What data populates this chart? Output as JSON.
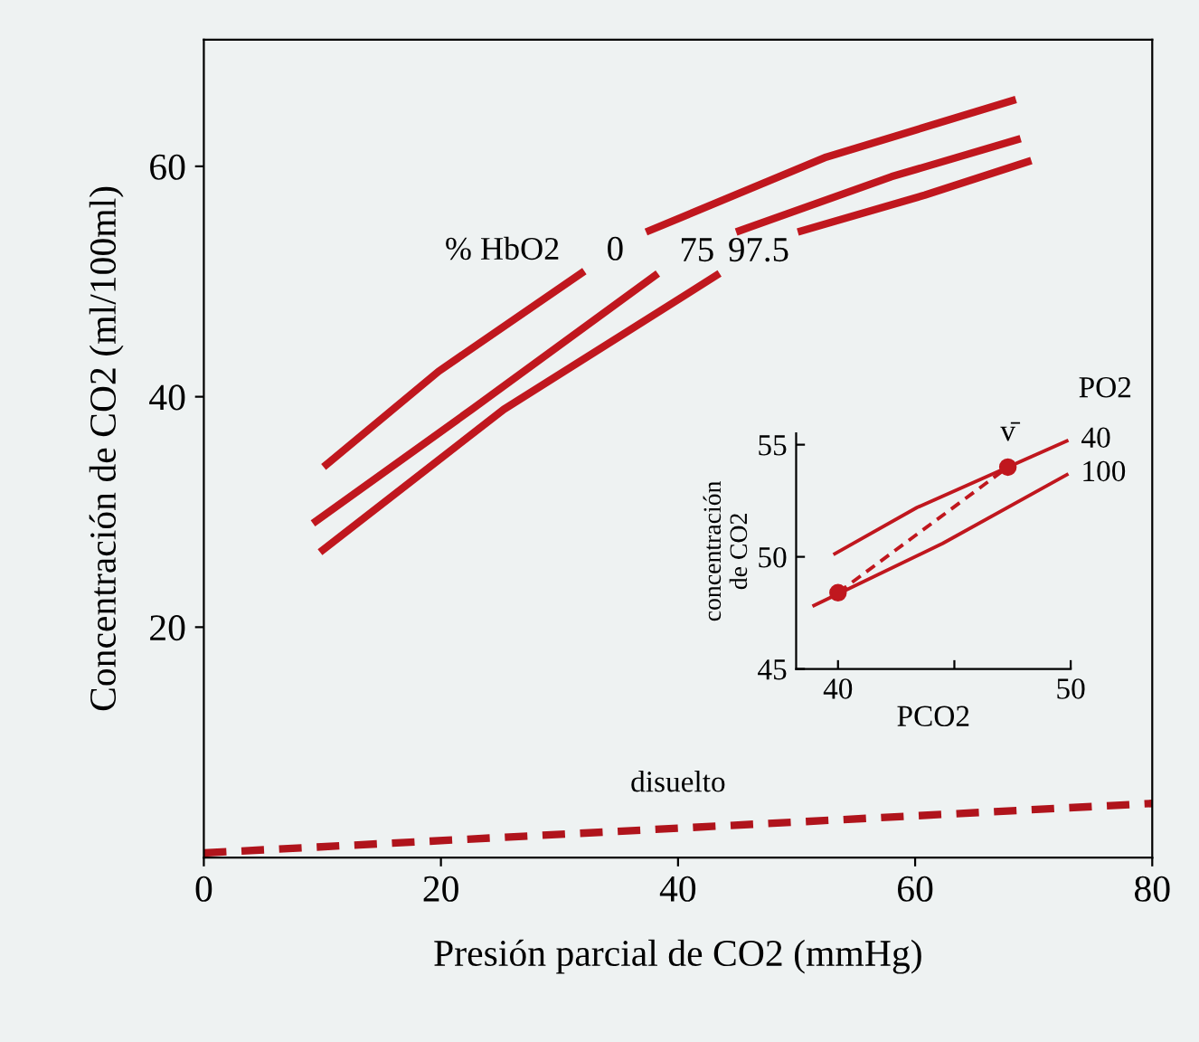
{
  "chart_data": [
    {
      "type": "line",
      "xlabel": "Presión parcial de CO2 (mmHg)",
      "ylabel": "Concentración de CO2 (ml/100ml)",
      "legend_title": "% HbO2",
      "xlim": [
        0,
        80
      ],
      "ylim": [
        0,
        71
      ],
      "xticks": [
        0,
        20,
        40,
        60,
        80
      ],
      "yticks": [
        20,
        40,
        60
      ],
      "line_style": "solid",
      "series": [
        {
          "name": "0",
          "color": "#c0171e",
          "x": [
            10.1,
            19.8,
            32.1,
            34.7,
            37.3,
            52.5,
            68.5
          ],
          "values": [
            33.9,
            42.2,
            50.9,
            null,
            54.3,
            60.8,
            65.8
          ]
        },
        {
          "name": "75",
          "color": "#c0171e",
          "x": [
            9.2,
            22.6,
            38.3,
            41.6,
            44.9,
            58.0,
            68.9
          ],
          "values": [
            29.0,
            38.9,
            50.7,
            null,
            54.3,
            59.1,
            62.4
          ]
        },
        {
          "name": "97.5",
          "color": "#c0171e",
          "x": [
            9.8,
            25.3,
            43.5,
            46.8,
            50.1,
            60.8,
            69.8
          ],
          "values": [
            26.5,
            38.9,
            50.7,
            null,
            54.3,
            57.5,
            60.5
          ]
        },
        {
          "name": "disuelto",
          "color": "#b0141c",
          "line_style": "dashed",
          "x": [
            0,
            80
          ],
          "values": [
            0.4,
            4.7
          ]
        }
      ]
    },
    {
      "type": "line",
      "xlabel": "PCO2",
      "ylabel": "concentración\nde CO2",
      "legend_title": "PO2",
      "xlim": [
        38.2,
        50
      ],
      "ylim": [
        45,
        55.5
      ],
      "xticks": [
        40,
        {
          "value": 45,
          "label": null
        },
        50
      ],
      "yticks": [
        45,
        50,
        55
      ],
      "series": [
        {
          "name": "40",
          "color": "#c0171e",
          "x": [
            39.8,
            43.4,
            47.3,
            49.9
          ],
          "values": [
            50.1,
            52.2,
            54.0,
            55.2
          ]
        },
        {
          "name": "100",
          "color": "#c0171e",
          "x": [
            38.9,
            44.5,
            49.9
          ],
          "values": [
            47.8,
            50.6,
            53.7
          ]
        },
        {
          "color": "#c0171e",
          "line_style": "dashed",
          "marker": "circle",
          "x": [
            40,
            47.3
          ],
          "values": [
            48.4,
            54.0
          ]
        }
      ],
      "annotations": [
        {
          "text": "v̄",
          "x": 47.3,
          "y": 54.0
        }
      ]
    }
  ]
}
